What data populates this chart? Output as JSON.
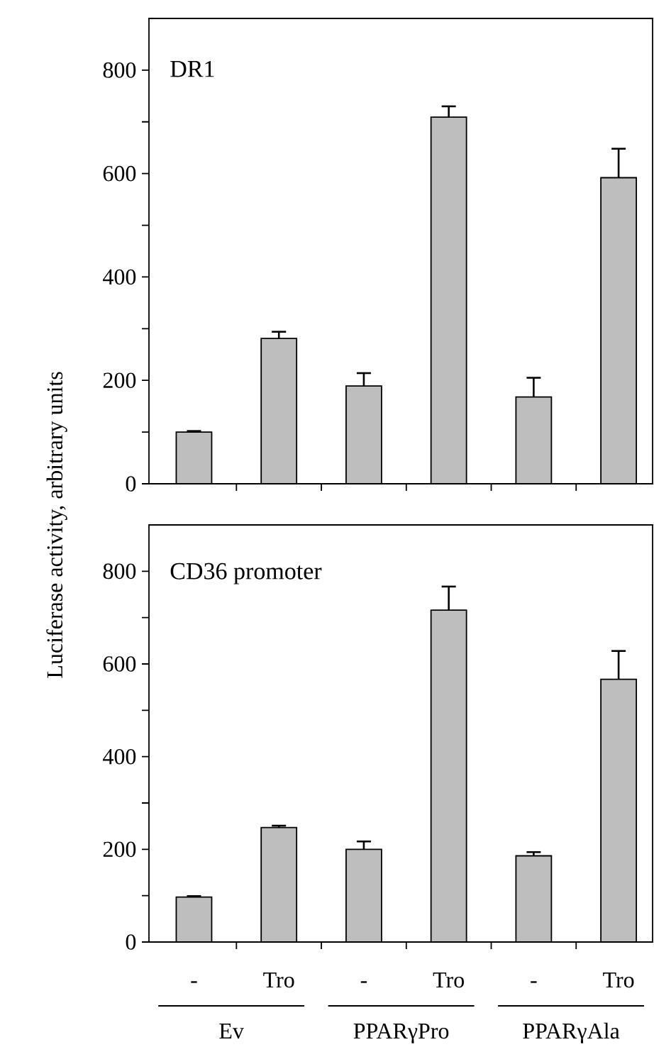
{
  "chart_data": [
    {
      "type": "bar",
      "title": "DR1",
      "ylabel": "Luciferase activity, arbitrary units",
      "categories": [
        null,
        null,
        null,
        null,
        null,
        null
      ],
      "values": [
        100,
        281,
        189,
        709,
        168,
        592
      ],
      "errors": [
        2,
        13,
        25,
        21,
        37,
        56
      ],
      "color": "#bebebe",
      "ylim": [
        0,
        900
      ],
      "yticks": [
        0,
        {
          "value": 100,
          "label": null
        },
        200,
        {
          "value": 300,
          "label": null
        },
        400,
        {
          "value": 500,
          "label": null
        },
        600,
        {
          "value": 700,
          "label": null
        },
        800
      ],
      "tick_labels": "y"
    },
    {
      "type": "bar",
      "title": "CD36 promoter",
      "categories": [
        "-",
        "Tro",
        "-",
        "Tro",
        "-",
        "Tro"
      ],
      "values": [
        97,
        247,
        200,
        716,
        186,
        567
      ],
      "errors": [
        2,
        4,
        17,
        51,
        8,
        61
      ],
      "color": "#bebebe",
      "ylim": [
        0,
        900
      ],
      "yticks": [
        0,
        {
          "value": 100,
          "label": null
        },
        200,
        {
          "value": 300,
          "label": null
        },
        400,
        {
          "value": 500,
          "label": null
        },
        600,
        {
          "value": 700,
          "label": null
        },
        800
      ],
      "annotations": [
        "Ev",
        "PPARγPro",
        "PPARγAla"
      ]
    }
  ]
}
